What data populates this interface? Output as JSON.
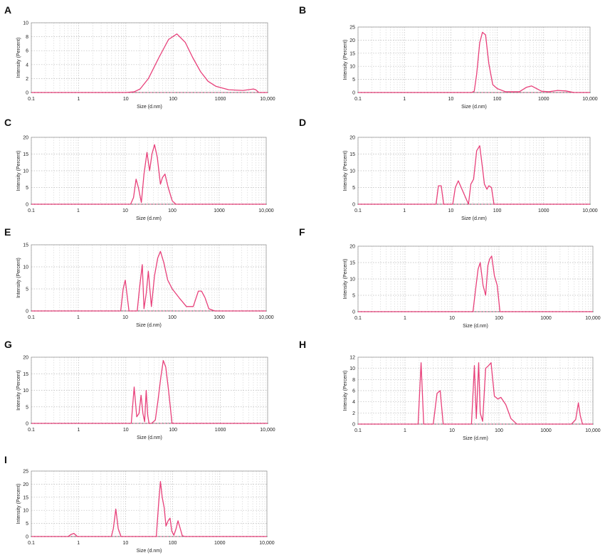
{
  "colors": {
    "curve": "#e8407a",
    "marker": "#6d9b8a",
    "grid": "#b8b8b8",
    "frame": "#9a9a9a"
  },
  "chart_data": [
    {
      "panel": "A",
      "type": "line",
      "xscale": "log",
      "xlim": [
        0.1,
        10000
      ],
      "ylim": [
        0,
        10
      ],
      "yticks": [
        0,
        2,
        4,
        6,
        8,
        10
      ],
      "xticks": [
        "0.1",
        "1",
        "10",
        "100",
        "1000",
        "10,000"
      ],
      "xlabel": "Size (d.nm)",
      "ylabel": "Intensity (Percent)",
      "x": [
        0.1,
        10,
        15,
        20,
        30,
        50,
        80,
        120,
        180,
        260,
        380,
        550,
        800,
        1500,
        3000,
        5000,
        5600,
        6500,
        10000
      ],
      "y": [
        0,
        0,
        0.1,
        0.5,
        2,
        5,
        7.6,
        8.4,
        7.2,
        5,
        3,
        1.6,
        0.9,
        0.4,
        0.3,
        0.5,
        0.4,
        0,
        0
      ]
    },
    {
      "panel": "B",
      "type": "line",
      "xscale": "log",
      "xlim": [
        0.1,
        10000
      ],
      "ylim": [
        0,
        25
      ],
      "yticks": [
        0,
        5,
        10,
        15,
        20,
        25
      ],
      "xticks": [
        "0.1",
        "1",
        "10",
        "100",
        "1000",
        "10,000"
      ],
      "xlabel": "Size (d.nm)",
      "ylabel": "Intensity (Percent)",
      "x": [
        0.1,
        28,
        32,
        36,
        42,
        48,
        56,
        66,
        80,
        100,
        150,
        300,
        430,
        550,
        900,
        1300,
        2000,
        3000,
        4500,
        10000
      ],
      "y": [
        0,
        0,
        0.5,
        7,
        19,
        23,
        22,
        11,
        3,
        1.5,
        0.3,
        0.3,
        2,
        2.5,
        0.5,
        0.3,
        0.8,
        0.6,
        0,
        0
      ]
    },
    {
      "panel": "C",
      "type": "line",
      "xscale": "log",
      "xlim": [
        0.1,
        10000
      ],
      "ylim": [
        0,
        20
      ],
      "yticks": [
        0,
        5,
        10,
        15,
        20
      ],
      "xticks": [
        "0.1",
        "1",
        "10",
        "100",
        "1000",
        "10,000"
      ],
      "xlabel": "Size (d.nm)",
      "ylabel": "Intensity (Percent)",
      "x": [
        0.1,
        13,
        15,
        17,
        19,
        22,
        25,
        29,
        33,
        37,
        42,
        48,
        56,
        62,
        70,
        82,
        100,
        120,
        10000
      ],
      "y": [
        0,
        0,
        2,
        7.5,
        5,
        0.5,
        9,
        15.5,
        10,
        15,
        17.8,
        14,
        6,
        8,
        9,
        5,
        1,
        0,
        0
      ]
    },
    {
      "panel": "D",
      "type": "line",
      "xscale": "log",
      "xlim": [
        0.1,
        10000
      ],
      "ylim": [
        0,
        20
      ],
      "yticks": [
        0,
        5,
        10,
        15,
        20
      ],
      "xticks": [
        "0.1",
        "1",
        "10",
        "100",
        "1000",
        "10,000"
      ],
      "xlabel": "Size (d.nm)",
      "ylabel": "Intensity (Percent)",
      "x": [
        0.1,
        4.8,
        5.4,
        6.2,
        7,
        11,
        12.5,
        14.5,
        24,
        27,
        31,
        36,
        42,
        47,
        53,
        60,
        66,
        75,
        85,
        10000
      ],
      "y": [
        0,
        0,
        5.5,
        5.5,
        0,
        0,
        5,
        7,
        0,
        6,
        7.5,
        16,
        17.5,
        12,
        6,
        4.5,
        5.5,
        5,
        0,
        0
      ]
    },
    {
      "panel": "E",
      "type": "line",
      "xscale": "log",
      "xlim": [
        0.1,
        10000
      ],
      "ylim": [
        0,
        15
      ],
      "yticks": [
        0,
        5,
        10,
        15
      ],
      "xticks": [
        "0.1",
        "1",
        "10",
        "100",
        "1000",
        "10,000"
      ],
      "xlabel": "Size (d.nm)",
      "ylabel": "Intensity (Percent)",
      "x": [
        0.1,
        8,
        9,
        10,
        12,
        18,
        20,
        23,
        25,
        28,
        31,
        36,
        42,
        49,
        56,
        66,
        80,
        100,
        140,
        200,
        280,
        360,
        420,
        500,
        600,
        800,
        10000
      ],
      "y": [
        0,
        0,
        5,
        7,
        0,
        0,
        5,
        10.5,
        0.5,
        4,
        9,
        1,
        8,
        12,
        13.5,
        11,
        7,
        5,
        3,
        1,
        1,
        4.5,
        4.5,
        3,
        0.5,
        0,
        0
      ]
    },
    {
      "panel": "F",
      "type": "line",
      "xscale": "log",
      "xlim": [
        0.1,
        10000
      ],
      "ylim": [
        0,
        20
      ],
      "yticks": [
        0,
        5,
        10,
        15,
        20
      ],
      "xticks": [
        "0.1",
        "1",
        "10",
        "100",
        "1000",
        "10,000"
      ],
      "xlabel": "Size (d.nm)",
      "ylabel": "Intensity (Percent)",
      "x": [
        0.1,
        28,
        32,
        36,
        40,
        46,
        52,
        58,
        63,
        70,
        80,
        92,
        105,
        10000
      ],
      "y": [
        0,
        0,
        7,
        13,
        15,
        8,
        5,
        14,
        16,
        17,
        11,
        8,
        0,
        0
      ]
    },
    {
      "panel": "G",
      "type": "line",
      "xscale": "log",
      "xlim": [
        0.1,
        10000
      ],
      "ylim": [
        0,
        20
      ],
      "yticks": [
        0,
        5,
        10,
        15,
        20
      ],
      "xticks": [
        "0.1",
        "1",
        "10",
        "100",
        "1000",
        "10,000"
      ],
      "xlabel": "Size (d.nm)",
      "ylabel": "Intensity (Percent)",
      "x": [
        0.1,
        13,
        15,
        17,
        19,
        21,
        23,
        25,
        27,
        29,
        31,
        35,
        42,
        48,
        55,
        62,
        70,
        80,
        95,
        10000
      ],
      "y": [
        0,
        0,
        11,
        2,
        3,
        8.5,
        3,
        0.5,
        10,
        2.5,
        0,
        0,
        1,
        7,
        14,
        19,
        17,
        10,
        0,
        0
      ]
    },
    {
      "panel": "H",
      "type": "line",
      "xscale": "log",
      "xlim": [
        0.1,
        10000
      ],
      "ylim": [
        0,
        12
      ],
      "yticks": [
        0,
        2,
        4,
        6,
        8,
        10,
        12
      ],
      "xticks": [
        "0.1",
        "1",
        "10",
        "100",
        "1000",
        "10,000"
      ],
      "xlabel": "Size (d.nm)",
      "ylabel": "Intensity (Percent)",
      "x": [
        0.1,
        1.9,
        2.2,
        2.5,
        4,
        4.8,
        5.6,
        6.5,
        26,
        30,
        33,
        37,
        40,
        45,
        52,
        60,
        68,
        80,
        95,
        110,
        140,
        180,
        240,
        3500,
        4300,
        4900,
        5400,
        6000,
        10000
      ],
      "y": [
        0,
        0,
        11,
        0,
        0,
        5.5,
        6,
        0,
        0,
        10.5,
        1,
        11,
        2,
        0.5,
        10,
        10.5,
        11,
        5,
        4.5,
        4.8,
        3.5,
        1,
        0,
        0,
        0.8,
        3.8,
        1.5,
        0,
        0
      ]
    },
    {
      "panel": "I",
      "type": "line",
      "xscale": "log",
      "xlim": [
        0.1,
        10000
      ],
      "ylim": [
        0,
        25
      ],
      "yticks": [
        0,
        5,
        10,
        15,
        20,
        25
      ],
      "xticks": [
        "0.1",
        "1",
        "10",
        "100",
        "1000",
        "10,000"
      ],
      "xlabel": "Size (d.nm)",
      "ylabel": "Intensity (Percent)",
      "x": [
        0.1,
        0.6,
        0.7,
        0.8,
        0.95,
        5,
        5.5,
        6.2,
        7,
        8,
        45,
        50,
        55,
        60,
        66,
        72,
        80,
        88,
        96,
        106,
        118,
        130,
        145,
        160,
        180,
        10000
      ],
      "y": [
        0,
        0,
        0.8,
        1.2,
        0,
        0,
        3,
        10.5,
        3,
        0,
        0,
        12,
        21,
        15,
        11,
        4,
        6,
        7,
        2,
        0.5,
        3,
        6,
        3,
        0.3,
        0,
        0
      ]
    }
  ]
}
